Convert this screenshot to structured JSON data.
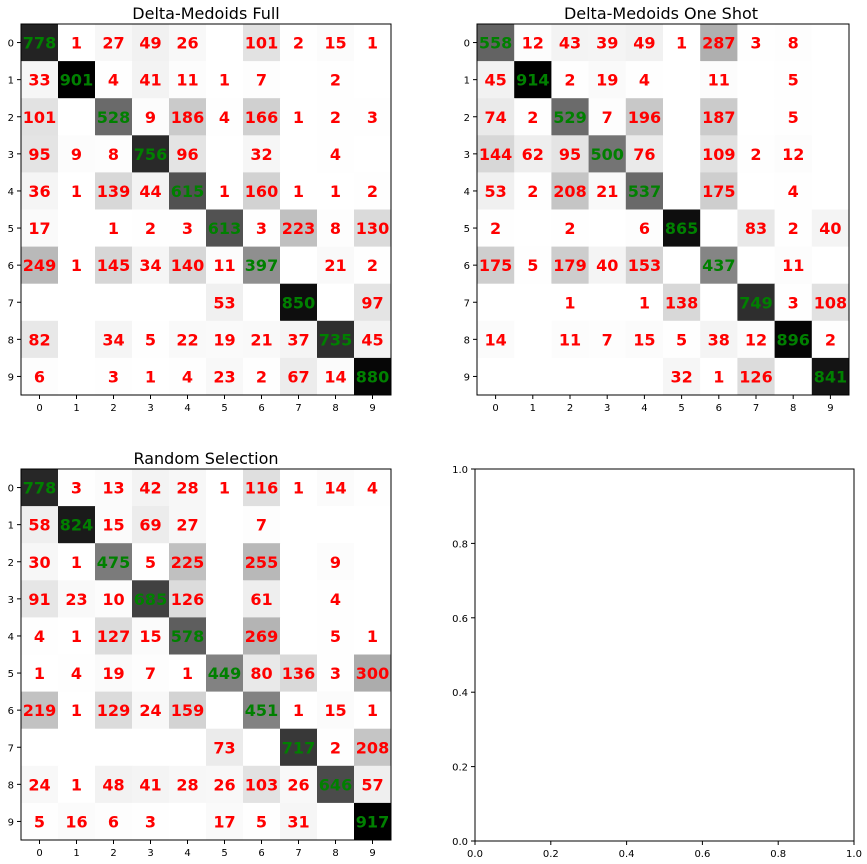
{
  "chart_data": [
    {
      "type": "heatmap",
      "title": "Delta-Medoids Full",
      "x_ticks": [
        "0",
        "1",
        "2",
        "3",
        "4",
        "5",
        "6",
        "7",
        "8",
        "9"
      ],
      "y_ticks": [
        "0",
        "1",
        "2",
        "3",
        "4",
        "5",
        "6",
        "7",
        "8",
        "9"
      ],
      "matrix": [
        [
          778,
          1,
          27,
          49,
          26,
          null,
          101,
          2,
          15,
          1
        ],
        [
          33,
          901,
          4,
          41,
          11,
          1,
          7,
          null,
          2,
          null
        ],
        [
          101,
          null,
          528,
          9,
          186,
          4,
          166,
          1,
          2,
          3
        ],
        [
          95,
          9,
          8,
          756,
          96,
          null,
          32,
          null,
          4,
          null
        ],
        [
          36,
          1,
          139,
          44,
          615,
          1,
          160,
          1,
          1,
          2
        ],
        [
          17,
          null,
          1,
          2,
          3,
          613,
          3,
          223,
          8,
          130
        ],
        [
          249,
          1,
          145,
          34,
          140,
          11,
          397,
          null,
          21,
          2
        ],
        [
          null,
          null,
          null,
          null,
          null,
          53,
          null,
          850,
          null,
          97
        ],
        [
          82,
          null,
          34,
          5,
          22,
          19,
          21,
          37,
          735,
          45
        ],
        [
          6,
          null,
          3,
          1,
          4,
          23,
          2,
          67,
          14,
          880
        ]
      ],
      "colormap": "greys",
      "diagonal_label_color": "#008000",
      "offdiagonal_label_color": "#ff0000"
    },
    {
      "type": "heatmap",
      "title": "Delta-Medoids One Shot",
      "x_ticks": [
        "0",
        "1",
        "2",
        "3",
        "4",
        "5",
        "6",
        "7",
        "8",
        "9"
      ],
      "y_ticks": [
        "0",
        "1",
        "2",
        "3",
        "4",
        "5",
        "6",
        "7",
        "8",
        "9"
      ],
      "matrix": [
        [
          558,
          12,
          43,
          39,
          49,
          1,
          287,
          3,
          8,
          null
        ],
        [
          45,
          914,
          2,
          19,
          4,
          null,
          11,
          null,
          5,
          null
        ],
        [
          74,
          2,
          529,
          7,
          196,
          null,
          187,
          null,
          5,
          null
        ],
        [
          144,
          62,
          95,
          500,
          76,
          null,
          109,
          2,
          12,
          null
        ],
        [
          53,
          2,
          208,
          21,
          537,
          null,
          175,
          null,
          4,
          null
        ],
        [
          2,
          null,
          2,
          null,
          6,
          865,
          null,
          83,
          2,
          40
        ],
        [
          175,
          5,
          179,
          40,
          153,
          null,
          437,
          null,
          11,
          null
        ],
        [
          null,
          null,
          1,
          null,
          1,
          138,
          null,
          749,
          3,
          108
        ],
        [
          14,
          null,
          11,
          7,
          15,
          5,
          38,
          12,
          896,
          2
        ],
        [
          null,
          null,
          null,
          null,
          null,
          32,
          1,
          126,
          null,
          841
        ]
      ],
      "colormap": "greys",
      "diagonal_label_color": "#008000",
      "offdiagonal_label_color": "#ff0000"
    },
    {
      "type": "heatmap",
      "title": "Random Selection",
      "x_ticks": [
        "0",
        "1",
        "2",
        "3",
        "4",
        "5",
        "6",
        "7",
        "8",
        "9"
      ],
      "y_ticks": [
        "0",
        "1",
        "2",
        "3",
        "4",
        "5",
        "6",
        "7",
        "8",
        "9"
      ],
      "matrix": [
        [
          778,
          3,
          13,
          42,
          28,
          1,
          116,
          1,
          14,
          4
        ],
        [
          58,
          824,
          15,
          69,
          27,
          null,
          7,
          null,
          null,
          null
        ],
        [
          30,
          1,
          475,
          5,
          225,
          null,
          255,
          null,
          9,
          null
        ],
        [
          91,
          23,
          10,
          685,
          126,
          null,
          61,
          null,
          4,
          null
        ],
        [
          4,
          1,
          127,
          15,
          578,
          null,
          269,
          null,
          5,
          1
        ],
        [
          1,
          4,
          19,
          7,
          1,
          449,
          80,
          136,
          3,
          300
        ],
        [
          219,
          1,
          129,
          24,
          159,
          null,
          451,
          1,
          15,
          1
        ],
        [
          null,
          null,
          null,
          null,
          null,
          73,
          null,
          717,
          2,
          208
        ],
        [
          24,
          1,
          48,
          41,
          28,
          26,
          103,
          26,
          646,
          57
        ],
        [
          5,
          16,
          6,
          3,
          null,
          17,
          5,
          31,
          null,
          917
        ]
      ],
      "colormap": "greys",
      "diagonal_label_color": "#008000",
      "offdiagonal_label_color": "#ff0000"
    },
    {
      "type": "line",
      "title": "",
      "xlim": [
        0,
        1
      ],
      "ylim": [
        0,
        1
      ],
      "x_ticks": [
        "0.0",
        "0.2",
        "0.4",
        "0.6",
        "0.8",
        "1.0"
      ],
      "y_ticks": [
        "0.0",
        "0.2",
        "0.4",
        "0.6",
        "0.8",
        "1.0"
      ],
      "series": []
    }
  ]
}
